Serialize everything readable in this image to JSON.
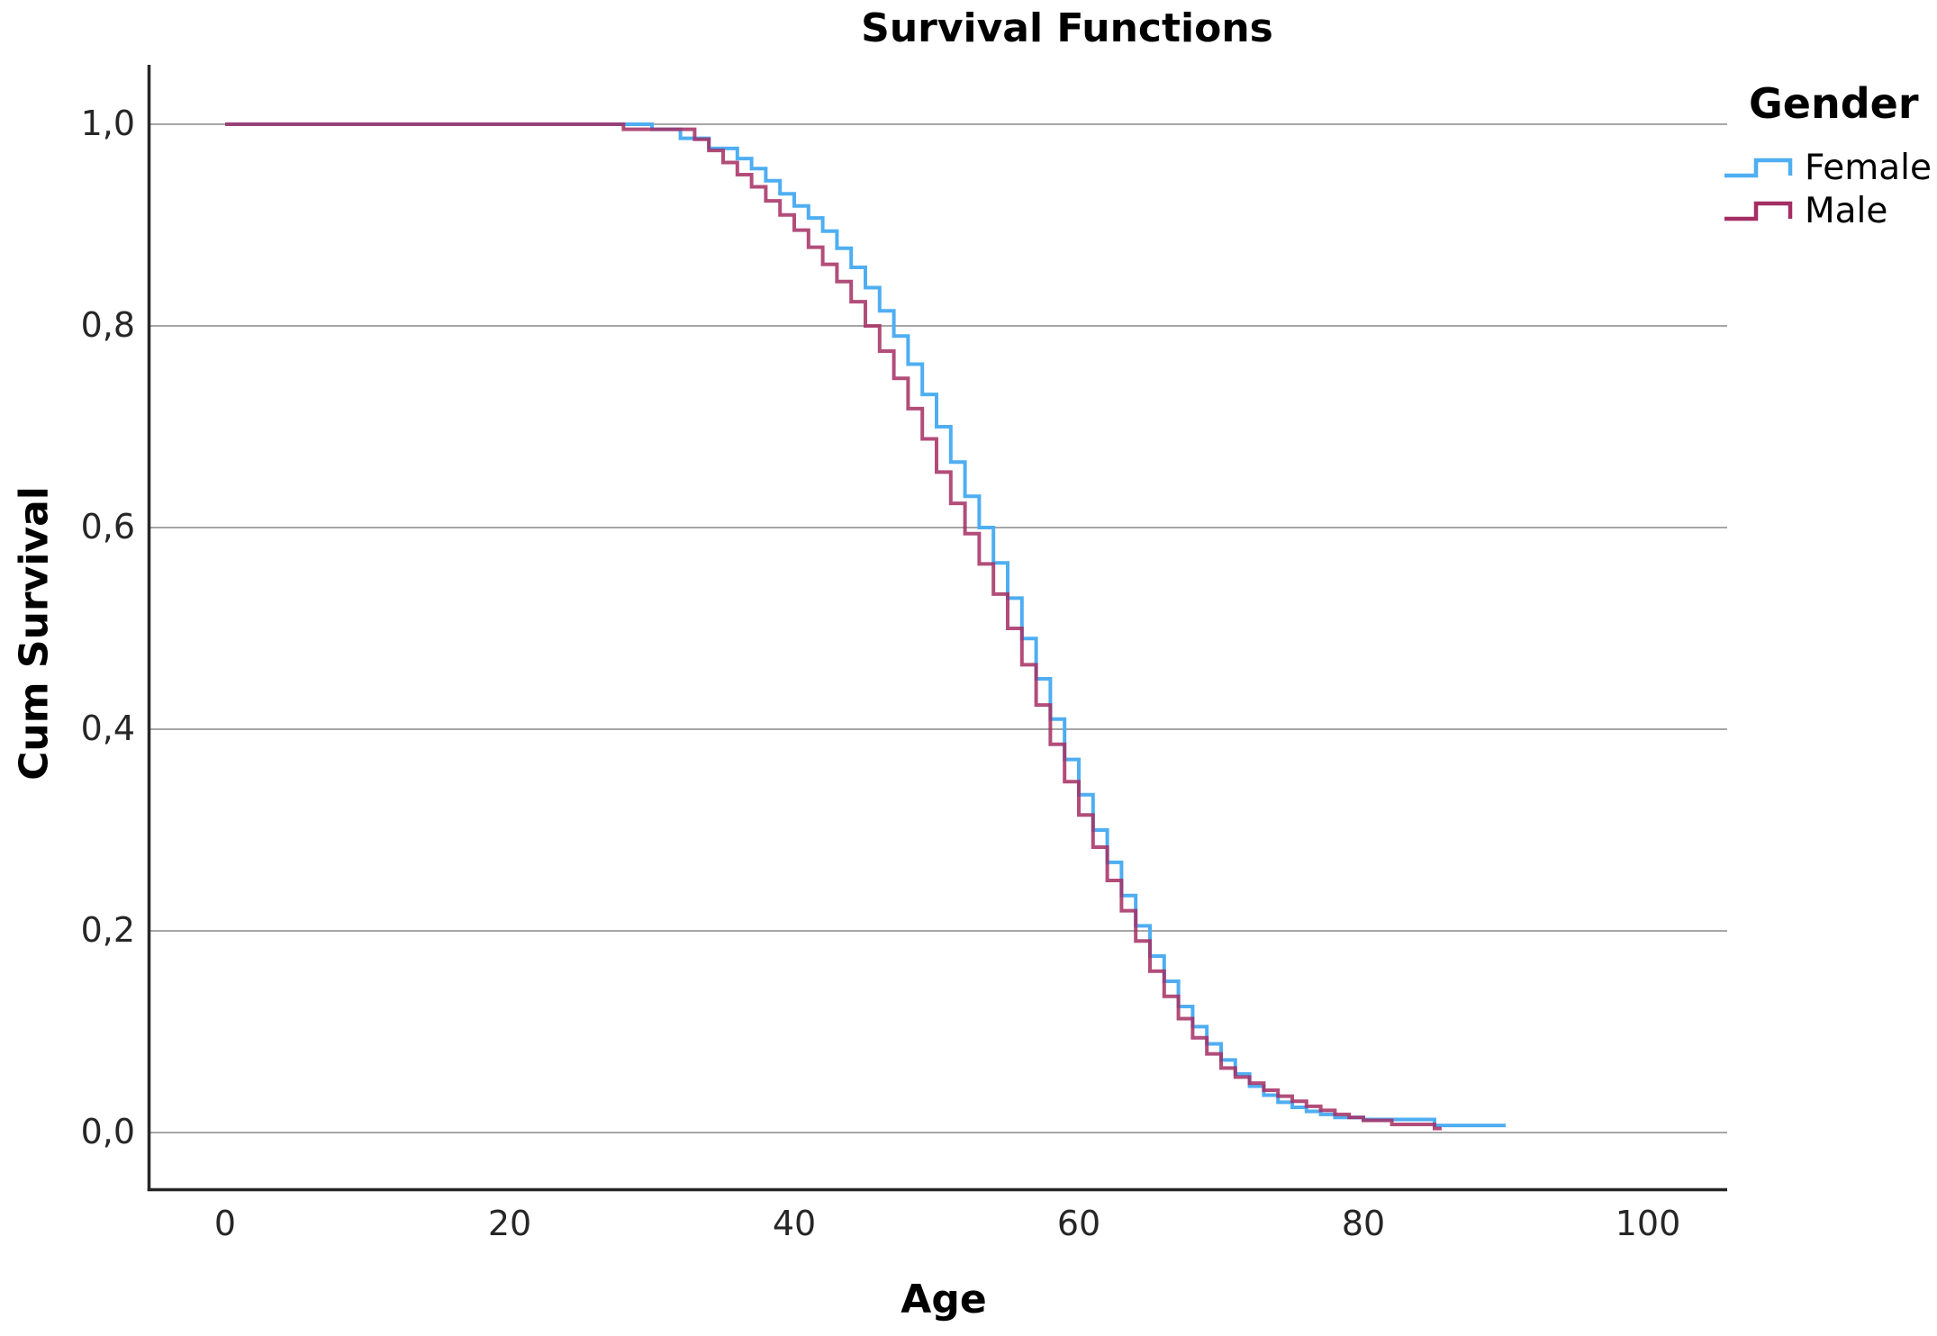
{
  "chart_data": {
    "type": "line",
    "subtype": "kaplan-meier-step",
    "title": "Survival Functions",
    "xlabel": "Age",
    "ylabel": "Cum Survival",
    "legend_title": "Gender",
    "legend_position": "top-right-outside",
    "grid": "horizontal",
    "xlim": [
      -5.4,
      105.6
    ],
    "ylim": [
      -0.058,
      1.059
    ],
    "xtick_values": [
      0,
      20,
      40,
      60,
      80,
      100
    ],
    "xtick_labels": [
      "0",
      "20",
      "40",
      "60",
      "80",
      "100"
    ],
    "ytick_values": [
      0.0,
      0.2,
      0.4,
      0.6,
      0.8,
      1.0
    ],
    "ytick_labels": [
      "0,0",
      "0,2",
      "0,4",
      "0,6",
      "0,8",
      "1,0"
    ],
    "colors": {
      "female": "#4FAEF2",
      "male": "#A42E63",
      "overlap_blend": "#955E9D",
      "gridline": "#A6A6A6",
      "axis": "#262626",
      "text": "#000000"
    },
    "series": [
      {
        "name": "Female",
        "color": "#4FAEF2",
        "end_age": 90,
        "points": [
          [
            0,
            1.0
          ],
          [
            30,
            0.995
          ],
          [
            32,
            0.986
          ],
          [
            34,
            0.976
          ],
          [
            36,
            0.966
          ],
          [
            37,
            0.956
          ],
          [
            38,
            0.944
          ],
          [
            39,
            0.931
          ],
          [
            40,
            0.919
          ],
          [
            41,
            0.907
          ],
          [
            42,
            0.894
          ],
          [
            43,
            0.877
          ],
          [
            44,
            0.858
          ],
          [
            45,
            0.838
          ],
          [
            46,
            0.815
          ],
          [
            47,
            0.79
          ],
          [
            48,
            0.762
          ],
          [
            49,
            0.732
          ],
          [
            50,
            0.7
          ],
          [
            51,
            0.665
          ],
          [
            52,
            0.631
          ],
          [
            53,
            0.6
          ],
          [
            54,
            0.565
          ],
          [
            55,
            0.53
          ],
          [
            56,
            0.49
          ],
          [
            57,
            0.45
          ],
          [
            58,
            0.41
          ],
          [
            59,
            0.37
          ],
          [
            60,
            0.335
          ],
          [
            61,
            0.3
          ],
          [
            62,
            0.268
          ],
          [
            63,
            0.235
          ],
          [
            64,
            0.205
          ],
          [
            65,
            0.175
          ],
          [
            66,
            0.15
          ],
          [
            67,
            0.125
          ],
          [
            68,
            0.105
          ],
          [
            69,
            0.088
          ],
          [
            70,
            0.072
          ],
          [
            71,
            0.058
          ],
          [
            72,
            0.046
          ],
          [
            73,
            0.037
          ],
          [
            74,
            0.03
          ],
          [
            75,
            0.025
          ],
          [
            76,
            0.021
          ],
          [
            77,
            0.018
          ],
          [
            78,
            0.015
          ],
          [
            80,
            0.013
          ],
          [
            85,
            0.007
          ]
        ]
      },
      {
        "name": "Male",
        "color": "#A42E63",
        "end_age": 85.5,
        "points": [
          [
            0,
            1.0
          ],
          [
            28,
            0.995
          ],
          [
            33,
            0.985
          ],
          [
            34,
            0.974
          ],
          [
            35,
            0.962
          ],
          [
            36,
            0.95
          ],
          [
            37,
            0.938
          ],
          [
            38,
            0.924
          ],
          [
            39,
            0.91
          ],
          [
            40,
            0.895
          ],
          [
            41,
            0.878
          ],
          [
            42,
            0.861
          ],
          [
            43,
            0.844
          ],
          [
            44,
            0.824
          ],
          [
            45,
            0.8
          ],
          [
            46,
            0.775
          ],
          [
            47,
            0.748
          ],
          [
            48,
            0.718
          ],
          [
            49,
            0.688
          ],
          [
            50,
            0.655
          ],
          [
            51,
            0.624
          ],
          [
            52,
            0.594
          ],
          [
            53,
            0.564
          ],
          [
            54,
            0.534
          ],
          [
            55,
            0.5
          ],
          [
            56,
            0.464
          ],
          [
            57,
            0.424
          ],
          [
            58,
            0.385
          ],
          [
            59,
            0.348
          ],
          [
            60,
            0.315
          ],
          [
            61,
            0.283
          ],
          [
            62,
            0.25
          ],
          [
            63,
            0.22
          ],
          [
            64,
            0.19
          ],
          [
            65,
            0.16
          ],
          [
            66,
            0.135
          ],
          [
            67,
            0.113
          ],
          [
            68,
            0.094
          ],
          [
            69,
            0.078
          ],
          [
            70,
            0.064
          ],
          [
            71,
            0.055
          ],
          [
            72,
            0.049
          ],
          [
            73,
            0.042
          ],
          [
            74,
            0.036
          ],
          [
            75,
            0.031
          ],
          [
            76,
            0.026
          ],
          [
            77,
            0.022
          ],
          [
            78,
            0.018
          ],
          [
            79,
            0.015
          ],
          [
            80,
            0.012
          ],
          [
            82,
            0.008
          ],
          [
            85,
            0.004
          ]
        ]
      }
    ]
  }
}
